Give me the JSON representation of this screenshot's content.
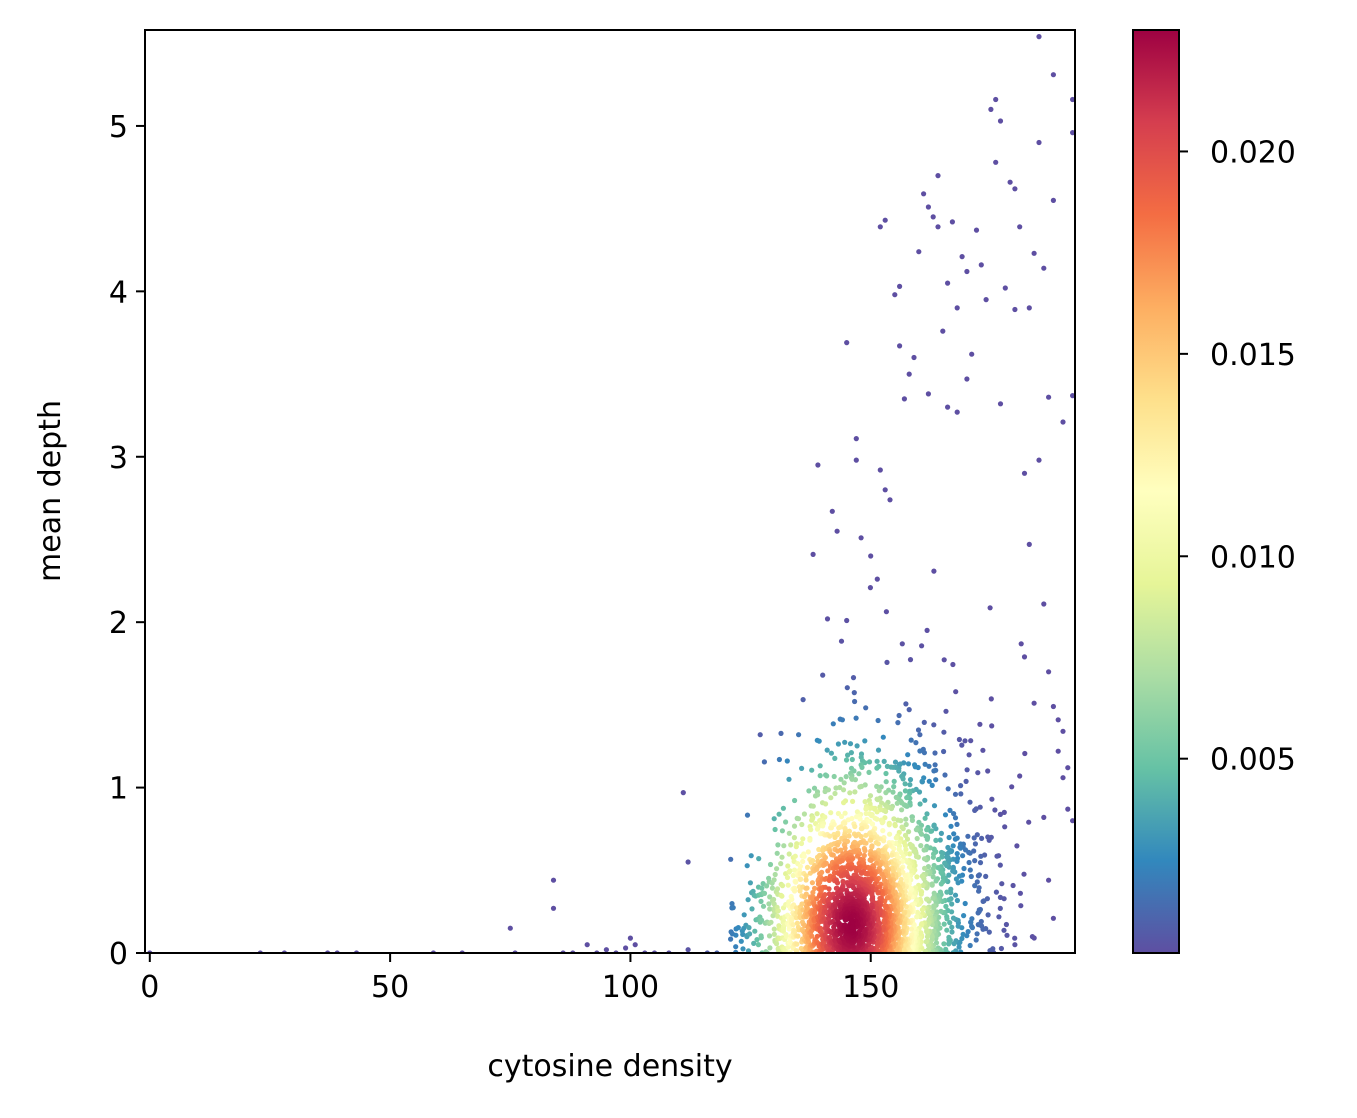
{
  "chart_data": {
    "type": "scatter",
    "title": "",
    "xlabel": "cytosine density",
    "ylabel": "mean depth",
    "xlim": [
      -1,
      192.5
    ],
    "ylim": [
      0,
      5.58
    ],
    "xticks": [
      0,
      50,
      100,
      150
    ],
    "xtick_labels": [
      "0",
      "50",
      "100",
      "150"
    ],
    "yticks": [
      0,
      1,
      2,
      3,
      4,
      5
    ],
    "ytick_labels": [
      "0",
      "1",
      "2",
      "3",
      "4",
      "5"
    ],
    "grid": false,
    "colormap": "Spectral_r",
    "colorbar": {
      "label": "",
      "range": [
        0.0002,
        0.023
      ],
      "ticks": [
        0.005,
        0.01,
        0.015,
        0.02
      ],
      "tick_labels": [
        "0.005",
        "0.010",
        "0.015",
        "0.020"
      ]
    },
    "colorbar_stops": [
      "#5e4fa2",
      "#3288bd",
      "#66c2a5",
      "#abdda4",
      "#e6f598",
      "#ffffbf",
      "#fee08b",
      "#fdae61",
      "#f46d43",
      "#d53e4f",
      "#9e0142"
    ],
    "density_peak": {
      "x": 146,
      "y": 0.17
    },
    "outlier_points": [
      [
        0,
        0
      ],
      [
        23,
        0
      ],
      [
        28,
        0
      ],
      [
        37,
        0
      ],
      [
        39,
        0
      ],
      [
        43,
        0
      ],
      [
        59,
        0
      ],
      [
        65,
        0
      ],
      [
        75,
        0.15
      ],
      [
        76,
        0
      ],
      [
        84,
        0.44
      ],
      [
        84,
        0.27
      ],
      [
        86,
        0
      ],
      [
        88,
        0
      ],
      [
        91,
        0.05
      ],
      [
        93,
        0
      ],
      [
        95,
        0.02
      ],
      [
        97,
        0
      ],
      [
        99,
        0.03
      ],
      [
        100,
        0.09
      ],
      [
        101,
        0.05
      ],
      [
        103,
        0
      ],
      [
        105,
        0
      ],
      [
        108,
        0
      ],
      [
        111,
        0.97
      ],
      [
        112,
        0.55
      ],
      [
        112,
        0.02
      ],
      [
        116,
        0
      ],
      [
        118,
        0
      ],
      [
        127,
        1.32
      ],
      [
        131,
        1.17
      ],
      [
        133,
        1.05
      ],
      [
        135,
        1.32
      ],
      [
        138,
        2.41
      ],
      [
        139,
        2.95
      ],
      [
        140,
        1.68
      ],
      [
        141,
        2.02
      ],
      [
        142,
        2.67
      ],
      [
        143,
        2.55
      ],
      [
        145,
        2.01
      ],
      [
        145,
        3.69
      ],
      [
        147,
        2.98
      ],
      [
        147,
        3.11
      ],
      [
        148,
        2.51
      ],
      [
        150,
        2.4
      ],
      [
        152,
        4.39
      ],
      [
        153,
        4.43
      ],
      [
        152,
        2.92
      ],
      [
        153,
        2.8
      ],
      [
        154,
        2.74
      ],
      [
        155,
        3.98
      ],
      [
        156,
        4.03
      ],
      [
        156,
        3.67
      ],
      [
        157,
        3.35
      ],
      [
        158,
        3.5
      ],
      [
        159,
        3.6
      ],
      [
        160,
        4.24
      ],
      [
        161,
        4.59
      ],
      [
        162,
        4.51
      ],
      [
        162,
        3.38
      ],
      [
        163,
        4.45
      ],
      [
        164,
        4.7
      ],
      [
        164,
        4.39
      ],
      [
        165,
        3.76
      ],
      [
        166,
        3.3
      ],
      [
        166,
        4.05
      ],
      [
        167,
        4.42
      ],
      [
        168,
        3.9
      ],
      [
        168,
        3.27
      ],
      [
        169,
        4.21
      ],
      [
        170,
        4.12
      ],
      [
        170,
        3.47
      ],
      [
        171,
        3.62
      ],
      [
        172,
        4.37
      ],
      [
        173,
        4.16
      ],
      [
        174,
        3.95
      ],
      [
        175,
        5.1
      ],
      [
        176,
        5.16
      ],
      [
        176,
        4.78
      ],
      [
        177,
        5.03
      ],
      [
        177,
        3.32
      ],
      [
        178,
        4.02
      ],
      [
        179,
        4.66
      ],
      [
        180,
        4.62
      ],
      [
        180,
        3.89
      ],
      [
        181,
        4.39
      ],
      [
        182,
        2.9
      ],
      [
        183,
        3.9
      ],
      [
        184,
        4.23
      ],
      [
        185,
        5.54
      ],
      [
        185,
        4.9
      ],
      [
        186,
        4.14
      ],
      [
        187,
        3.36
      ],
      [
        188,
        5.31
      ],
      [
        188,
        4.55
      ],
      [
        190,
        3.21
      ],
      [
        192,
        5.16
      ],
      [
        192,
        4.96
      ],
      [
        192,
        3.37
      ],
      [
        183,
        2.47
      ],
      [
        185,
        2.98
      ],
      [
        186,
        2.11
      ],
      [
        187,
        1.7
      ],
      [
        188,
        1.49
      ],
      [
        189,
        1.22
      ],
      [
        190,
        1.06
      ],
      [
        191,
        0.87
      ],
      [
        192,
        0.8
      ],
      [
        186,
        0.82
      ],
      [
        187,
        0.44
      ],
      [
        188,
        0.21
      ],
      [
        189,
        1.41
      ],
      [
        190,
        1.34
      ],
      [
        191,
        1.12
      ],
      [
        184,
        1.51
      ],
      [
        182,
        1.79
      ],
      [
        181,
        1.07
      ],
      [
        180,
        0.05
      ]
    ],
    "cloud_center": {
      "x": 150,
      "y": 0.45
    },
    "cloud_spread": {
      "x": 13,
      "y": 0.75
    },
    "cloud_count": 2600
  }
}
